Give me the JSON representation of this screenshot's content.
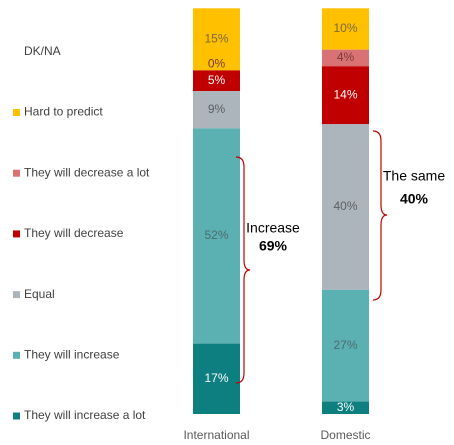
{
  "chart_data": {
    "type": "stacked_bar",
    "categories": [
      "International",
      "Domestic"
    ],
    "ylim": [
      0,
      100
    ],
    "series": [
      {
        "name": "They will increase a lot",
        "color": "#0e7f80",
        "label_color": "#ffffff",
        "values": [
          17,
          3
        ],
        "value_labels": [
          "17%",
          "3%"
        ]
      },
      {
        "name": "They will increase",
        "color": "#5bb0b2",
        "label_color": "#4d6b6c",
        "values": [
          52,
          27
        ],
        "value_labels": [
          "52%",
          "27%"
        ]
      },
      {
        "name": "Equal",
        "color": "#adb5bc",
        "label_color": "#5a5f63",
        "values": [
          9,
          40
        ],
        "value_labels": [
          "9%",
          "40%"
        ]
      },
      {
        "name": "They will decrease",
        "color": "#c00000",
        "label_color": "#ffffff",
        "values": [
          5,
          14
        ],
        "value_labels": [
          "5%",
          "14%"
        ]
      },
      {
        "name": "They will decrease a lot",
        "color": "#d97272",
        "label_color": "#7a3a3a",
        "values": [
          0,
          4
        ],
        "value_labels": [
          "0%",
          "4%"
        ]
      },
      {
        "name": "Hard to predict",
        "color": "#ffc000",
        "label_color": "#7a6a3a",
        "values": [
          15,
          10
        ],
        "value_labels": [
          "15%",
          "10%"
        ]
      },
      {
        "name": "DK/NA",
        "color": "#ffffff",
        "label_color": "#595959",
        "values": [
          2,
          3
        ]
      }
    ],
    "annotations": [
      {
        "text": "Increase",
        "value": "69%"
      },
      {
        "text": "The same",
        "value": "40%"
      }
    ]
  }
}
